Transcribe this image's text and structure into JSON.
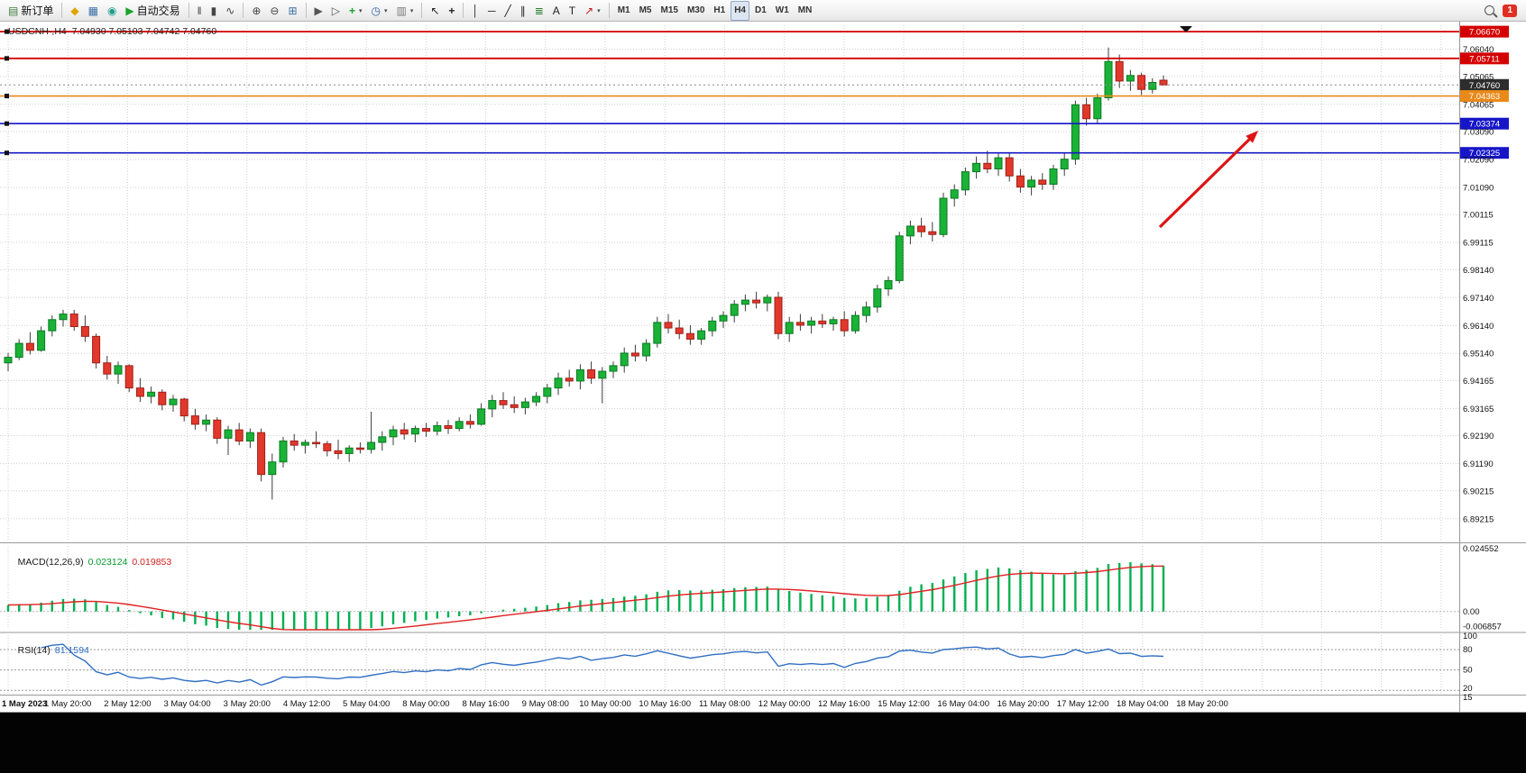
{
  "toolbar": {
    "notification_count": "1",
    "items": [
      {
        "type": "button",
        "name": "new-order-button",
        "icon": "new-order-icon",
        "glyph": "▤",
        "glyph_color": "#3f7d3f",
        "label": "新订单"
      },
      {
        "type": "sep"
      },
      {
        "type": "button",
        "name": "alerts-button",
        "icon": "alert-icon",
        "glyph": "◆",
        "glyph_color": "#e0a400"
      },
      {
        "type": "button",
        "name": "news-button",
        "icon": "news-icon",
        "glyph": "▦",
        "glyph_color": "#3a6ea5"
      },
      {
        "type": "button",
        "name": "web-terminal-button",
        "icon": "globe-icon",
        "glyph": "◉",
        "glyph_color": "#1f9e8e"
      },
      {
        "type": "button",
        "name": "auto-trading-button",
        "icon": "autotrading-play-icon",
        "glyph": "▶",
        "glyph_color": "#18a32a",
        "label": "自动交易"
      },
      {
        "type": "sep"
      },
      {
        "type": "button",
        "name": "bar-chart-button",
        "icon": "bar-chart-icon",
        "glyph": "‖",
        "glyph_color": "#444"
      },
      {
        "type": "button",
        "name": "candlestick-chart-button",
        "icon": "candlestick-icon",
        "glyph": "▮",
        "glyph_color": "#444"
      },
      {
        "type": "button",
        "name": "line-chart-button",
        "icon": "line-chart-icon",
        "glyph": "∿",
        "glyph_color": "#444"
      },
      {
        "type": "sep"
      },
      {
        "type": "button",
        "name": "zoom-in-button",
        "icon": "zoom-in-icon",
        "glyph": "⊕",
        "glyph_color": "#444"
      },
      {
        "type": "button",
        "name": "zoom-out-button",
        "icon": "zoom-out-icon",
        "glyph": "⊖",
        "glyph_color": "#444"
      },
      {
        "type": "button",
        "name": "tile-windows-button",
        "icon": "tile-windows-icon",
        "glyph": "⊞",
        "glyph_color": "#3a6ea5"
      },
      {
        "type": "sep"
      },
      {
        "type": "button",
        "name": "auto-scroll-button",
        "icon": "auto-scroll-icon",
        "glyph": "▶",
        "glyph_color": "#555"
      },
      {
        "type": "button",
        "name": "chart-shift-button",
        "icon": "chart-shift-icon",
        "glyph": "▷",
        "glyph_color": "#555"
      },
      {
        "type": "button",
        "name": "indicators-button",
        "icon": "indicators-plus-icon",
        "glyph": "+",
        "glyph_color": "#18a32a",
        "caret": true
      },
      {
        "type": "button",
        "name": "periods-button",
        "icon": "clock-icon",
        "glyph": "◷",
        "glyph_color": "#2b5fa5",
        "caret": true
      },
      {
        "type": "button",
        "name": "templates-button",
        "icon": "template-icon",
        "glyph": "▥",
        "glyph_color": "#777777",
        "caret": true
      },
      {
        "type": "sep"
      },
      {
        "type": "button",
        "name": "cursor-button",
        "icon": "cursor-icon",
        "glyph": "↖",
        "glyph_color": "#222"
      },
      {
        "type": "button",
        "name": "crosshair-button",
        "icon": "crosshair-icon",
        "glyph": "+",
        "glyph_color": "#222"
      },
      {
        "type": "sep"
      },
      {
        "type": "button",
        "name": "vertical-line-button",
        "icon": "vertical-line-icon",
        "glyph": "│",
        "glyph_color": "#222"
      },
      {
        "type": "button",
        "name": "horizontal-line-button",
        "icon": "horizontal-line-icon",
        "glyph": "─",
        "glyph_color": "#222"
      },
      {
        "type": "button",
        "name": "trendline-button",
        "icon": "trendline-icon",
        "glyph": "╱",
        "glyph_color": "#222"
      },
      {
        "type": "button",
        "name": "equidistant-channel-button",
        "icon": "channel-icon",
        "glyph": "∥",
        "glyph_color": "#222"
      },
      {
        "type": "button",
        "name": "fibonacci-button",
        "icon": "fibonacci-icon",
        "glyph": "≣",
        "glyph_color": "#2b7d2b"
      },
      {
        "type": "button",
        "name": "text-button",
        "icon": "text-icon",
        "glyph": "A",
        "glyph_color": "#222"
      },
      {
        "type": "button",
        "name": "label-button",
        "icon": "label-icon",
        "glyph": "T",
        "glyph_color": "#222"
      },
      {
        "type": "button",
        "name": "arrows-button",
        "icon": "arrow-object-icon",
        "glyph": "↗",
        "glyph_color": "#c02020",
        "caret": true
      },
      {
        "type": "sep"
      },
      {
        "type": "tf",
        "name": "timeframe-m1-button",
        "label": "M1"
      },
      {
        "type": "tf",
        "name": "timeframe-m5-button",
        "label": "M5"
      },
      {
        "type": "tf",
        "name": "timeframe-m15-button",
        "label": "M15"
      },
      {
        "type": "tf",
        "name": "timeframe-m30-button",
        "label": "M30"
      },
      {
        "type": "tf",
        "name": "timeframe-h1-button",
        "label": "H1"
      },
      {
        "type": "tf",
        "name": "timeframe-h4-button",
        "label": "H4",
        "active": true
      },
      {
        "type": "tf",
        "name": "timeframe-d1-button",
        "label": "D1"
      },
      {
        "type": "tf",
        "name": "timeframe-w1-button",
        "label": "W1"
      },
      {
        "type": "tf",
        "name": "timeframe-mn-button",
        "label": "MN"
      }
    ]
  },
  "chart": {
    "title": "USDCNH-,H4  7.04930 7.05103 7.04742 7.04760",
    "symbol": "USDCNH-",
    "period": "H4",
    "ohlc": {
      "open": "7.04930",
      "high": "7.05103",
      "low": "7.04742",
      "close": "7.04760"
    }
  },
  "indicators": {
    "macd": {
      "label": "MACD(12,26,9)",
      "value_main": "0.023124",
      "value_signal": "0.019853",
      "scale": [
        "0.024552",
        "0.00",
        "-0.006857"
      ]
    },
    "rsi": {
      "label": "RSI(14)",
      "value": "81.1594",
      "levels": [
        "100",
        "80",
        "50",
        "20",
        "15"
      ]
    }
  },
  "chart_data": {
    "type": "candlestick",
    "symbol": "USDCNH",
    "timeframe": "H4",
    "colors": {
      "up": "#1ab237",
      "up_border": "#0a7a22",
      "down": "#e2382c",
      "down_border": "#9e1f17",
      "wick": "#3c3c3c",
      "macd_histogram": "#00b050",
      "macd_signal": "#e02020",
      "rsi_line": "#2f6fc4",
      "grid": "#cfcfcf",
      "arrow": "#dd1414"
    },
    "price_axis": [
      "7.06040",
      "7.05065",
      "7.04065",
      "7.03090",
      "7.02090",
      "7.01090",
      "7.00115",
      "6.99115",
      "6.98140",
      "6.97140",
      "6.96140",
      "6.95140",
      "6.94165",
      "6.93165",
      "6.92190",
      "6.91190",
      "6.90215",
      "6.89215"
    ],
    "time_axis": [
      "1 May 2023",
      "1 May 20:00",
      "2 May 12:00",
      "3 May 04:00",
      "3 May 20:00",
      "4 May 12:00",
      "5 May 04:00",
      "8 May 00:00",
      "8 May 16:00",
      "9 May 08:00",
      "10 May 00:00",
      "10 May 16:00",
      "11 May 08:00",
      "12 May 00:00",
      "12 May 16:00",
      "15 May 12:00",
      "16 May 04:00",
      "16 May 20:00",
      "17 May 12:00",
      "18 May 04:00",
      "18 May 20:00"
    ],
    "hlines": [
      {
        "name": "resistance-line-1",
        "price": 7.0667,
        "label": "7.06670",
        "color": "#d40000",
        "box": "#d40000",
        "width": 1.8,
        "style": "solid",
        "handle": true
      },
      {
        "name": "resistance-line-2",
        "price": 7.05711,
        "label": "7.05711",
        "color": "#d40000",
        "box": "#d40000",
        "width": 1.8,
        "style": "solid",
        "handle": true
      },
      {
        "name": "current-price-line",
        "price": 7.0476,
        "label": "7.04760",
        "color": "#888888",
        "box": "#2d2d2d",
        "width": 1,
        "style": "dot",
        "handle": false
      },
      {
        "name": "breakout-level-line",
        "price": 7.04363,
        "label": "7.04363",
        "color": "#e8891a",
        "box": "#e8891a",
        "width": 1.6,
        "style": "solid",
        "handle": true
      },
      {
        "name": "support-line-1",
        "price": 7.03374,
        "label": "7.03374",
        "color": "#1616c8",
        "box": "#1616c8",
        "width": 1.6,
        "style": "solid",
        "handle": true
      },
      {
        "name": "support-line-2",
        "price": 7.02325,
        "label": "7.02325",
        "color": "#1616c8",
        "box": "#1616c8",
        "width": 1.6,
        "style": "solid",
        "handle": true
      }
    ],
    "trend_arrow": {
      "from": [
        1286,
        252
      ],
      "to": [
        1388,
        152
      ],
      "color": "#dd1414"
    },
    "macd_panel": {
      "max": 0.024552,
      "min": -0.006857
    },
    "rsi_panel": {
      "max": 100,
      "min": 15,
      "levels": [
        80,
        50,
        20
      ]
    },
    "ohlc": [
      [
        6.948,
        6.9515,
        6.945,
        6.95
      ],
      [
        6.95,
        6.9565,
        6.949,
        6.955
      ],
      [
        6.955,
        6.959,
        6.951,
        6.9525
      ],
      [
        6.9525,
        6.961,
        6.952,
        6.9595
      ],
      [
        6.9595,
        6.965,
        6.9575,
        6.9635
      ],
      [
        6.9635,
        6.967,
        6.961,
        6.9655
      ],
      [
        6.9655,
        6.967,
        6.9595,
        6.961
      ],
      [
        6.961,
        6.965,
        6.9555,
        6.9575
      ],
      [
        6.9575,
        6.9585,
        6.946,
        6.948
      ],
      [
        6.948,
        6.9505,
        6.942,
        6.944
      ],
      [
        6.944,
        6.9485,
        6.9405,
        6.947
      ],
      [
        6.947,
        6.9475,
        6.9375,
        6.939
      ],
      [
        6.939,
        6.9425,
        6.934,
        6.936
      ],
      [
        6.936,
        6.9395,
        6.9335,
        6.9375
      ],
      [
        6.9375,
        6.9385,
        6.931,
        6.933
      ],
      [
        6.933,
        6.9365,
        6.9305,
        6.935
      ],
      [
        6.935,
        6.9355,
        6.927,
        6.929
      ],
      [
        6.929,
        6.9315,
        6.924,
        6.926
      ],
      [
        6.926,
        6.9295,
        6.9235,
        6.9275
      ],
      [
        6.9275,
        6.9285,
        6.919,
        6.921
      ],
      [
        6.921,
        6.9255,
        6.915,
        6.924
      ],
      [
        6.924,
        6.9265,
        6.9185,
        6.92
      ],
      [
        6.92,
        6.9245,
        6.9175,
        6.923
      ],
      [
        6.923,
        6.9245,
        6.9055,
        6.908
      ],
      [
        6.908,
        6.9155,
        6.899,
        6.9125
      ],
      [
        6.9125,
        6.9215,
        6.9105,
        6.92
      ],
      [
        6.92,
        6.9225,
        6.9165,
        6.9185
      ],
      [
        6.9185,
        6.9205,
        6.9155,
        6.9195
      ],
      [
        6.9195,
        6.9235,
        6.9175,
        6.919
      ],
      [
        6.919,
        6.92,
        6.9145,
        6.9165
      ],
      [
        6.9165,
        6.9205,
        6.9135,
        6.9155
      ],
      [
        6.9155,
        6.9185,
        6.9125,
        6.9175
      ],
      [
        6.9175,
        6.9195,
        6.9155,
        6.917
      ],
      [
        6.917,
        6.9305,
        6.9155,
        6.9195
      ],
      [
        6.9195,
        6.9235,
        6.9165,
        6.9215
      ],
      [
        6.9215,
        6.9255,
        6.9185,
        6.924
      ],
      [
        6.924,
        6.9265,
        6.9205,
        6.9225
      ],
      [
        6.9225,
        6.9255,
        6.9195,
        6.9245
      ],
      [
        6.9245,
        6.9265,
        6.9215,
        6.9235
      ],
      [
        6.9235,
        6.927,
        6.922,
        6.9255
      ],
      [
        6.9255,
        6.9275,
        6.9225,
        6.9245
      ],
      [
        6.9245,
        6.9285,
        6.9235,
        6.927
      ],
      [
        6.927,
        6.9295,
        6.9245,
        6.926
      ],
      [
        6.926,
        6.9335,
        6.9255,
        6.9315
      ],
      [
        6.9315,
        6.9365,
        6.9285,
        6.9345
      ],
      [
        6.9345,
        6.9375,
        6.9315,
        6.933
      ],
      [
        6.933,
        6.936,
        6.93,
        6.932
      ],
      [
        6.932,
        6.9355,
        6.9295,
        6.934
      ],
      [
        6.934,
        6.9375,
        6.9325,
        6.936
      ],
      [
        6.936,
        6.9405,
        6.9335,
        6.939
      ],
      [
        6.939,
        6.9445,
        6.9365,
        6.9425
      ],
      [
        6.9425,
        6.9455,
        6.9395,
        6.9415
      ],
      [
        6.9415,
        6.9475,
        6.9385,
        6.9455
      ],
      [
        6.9455,
        6.9485,
        6.9405,
        6.9425
      ],
      [
        6.9425,
        6.9465,
        6.9335,
        6.945
      ],
      [
        6.945,
        6.9485,
        6.9425,
        6.947
      ],
      [
        6.947,
        6.9535,
        6.9445,
        6.9515
      ],
      [
        6.9515,
        6.9545,
        6.9485,
        6.9505
      ],
      [
        6.9505,
        6.9565,
        6.9485,
        6.955
      ],
      [
        6.955,
        6.9645,
        6.9535,
        6.9625
      ],
      [
        6.9625,
        6.9655,
        6.9585,
        6.9605
      ],
      [
        6.9605,
        6.9635,
        6.9565,
        6.9585
      ],
      [
        6.9585,
        6.9615,
        6.9545,
        6.9565
      ],
      [
        6.9565,
        6.9605,
        6.9545,
        6.9595
      ],
      [
        6.9595,
        6.9645,
        6.9575,
        6.963
      ],
      [
        6.963,
        6.9665,
        6.9605,
        6.965
      ],
      [
        6.965,
        6.9705,
        6.9625,
        6.969
      ],
      [
        6.969,
        6.9725,
        6.9665,
        6.9705
      ],
      [
        6.9705,
        6.9735,
        6.9675,
        6.9695
      ],
      [
        6.9695,
        6.9725,
        6.9665,
        6.9715
      ],
      [
        6.9715,
        6.9735,
        6.9565,
        6.9585
      ],
      [
        6.9585,
        6.9645,
        6.9555,
        6.9625
      ],
      [
        6.9625,
        6.9655,
        6.9595,
        6.9615
      ],
      [
        6.9615,
        6.9645,
        6.9585,
        6.963
      ],
      [
        6.963,
        6.9655,
        6.9605,
        6.962
      ],
      [
        6.962,
        6.9645,
        6.9595,
        6.9635
      ],
      [
        6.9635,
        6.9665,
        6.9575,
        6.9595
      ],
      [
        6.9595,
        6.9665,
        6.9585,
        6.965
      ],
      [
        6.965,
        6.97,
        6.9625,
        6.968
      ],
      [
        6.968,
        6.976,
        6.966,
        6.9745
      ],
      [
        6.9745,
        6.979,
        6.972,
        6.9775
      ],
      [
        6.9775,
        6.995,
        6.9765,
        6.9935
      ],
      [
        6.9935,
        6.999,
        6.9905,
        6.997
      ],
      [
        6.997,
        7.0,
        6.993,
        6.995
      ],
      [
        6.995,
        6.9985,
        6.9915,
        6.994
      ],
      [
        6.994,
        7.009,
        6.993,
        7.007
      ],
      [
        7.007,
        7.012,
        7.004,
        7.01
      ],
      [
        7.01,
        7.018,
        7.008,
        7.0165
      ],
      [
        7.0165,
        7.022,
        7.014,
        7.0195
      ],
      [
        7.0195,
        7.024,
        7.016,
        7.0175
      ],
      [
        7.0175,
        7.023,
        7.015,
        7.0215
      ],
      [
        7.0215,
        7.0235,
        7.013,
        7.015
      ],
      [
        7.015,
        7.0175,
        7.009,
        7.011
      ],
      [
        7.011,
        7.015,
        7.008,
        7.0135
      ],
      [
        7.0135,
        7.016,
        7.01,
        7.012
      ],
      [
        7.012,
        7.019,
        7.01,
        7.0175
      ],
      [
        7.0175,
        7.023,
        7.015,
        7.021
      ],
      [
        7.021,
        7.042,
        7.019,
        7.0405
      ],
      [
        7.0405,
        7.043,
        7.033,
        7.0355
      ],
      [
        7.0355,
        7.0445,
        7.0335,
        7.043
      ],
      [
        7.043,
        7.061,
        7.042,
        7.056
      ],
      [
        7.056,
        7.0585,
        7.0465,
        7.049
      ],
      [
        7.049,
        7.053,
        7.0455,
        7.051
      ],
      [
        7.051,
        7.052,
        7.044,
        7.046
      ],
      [
        7.046,
        7.05,
        7.0445,
        7.0485
      ],
      [
        7.0493,
        7.051,
        7.0474,
        7.0476
      ]
    ]
  }
}
